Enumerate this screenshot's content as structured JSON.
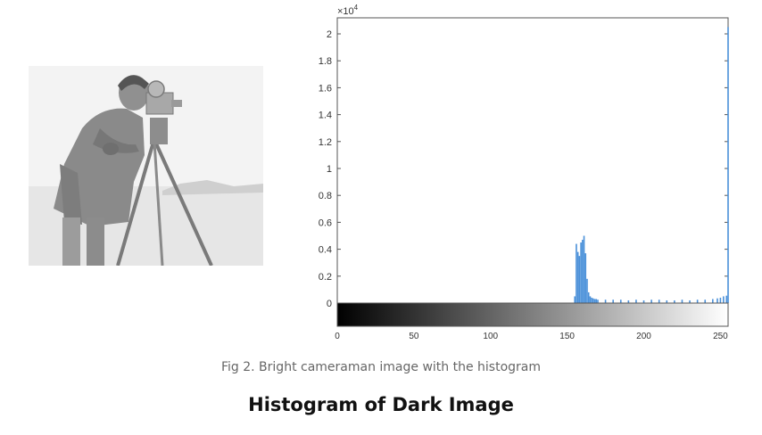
{
  "image": {
    "alt": "Bright cameraman image"
  },
  "chart_data": {
    "type": "bar",
    "xlim": [
      0,
      255
    ],
    "ylim": [
      0,
      2
    ],
    "x_ticks": [
      "0",
      "50",
      "100",
      "150",
      "200",
      "250"
    ],
    "y_ticks": [
      "0",
      "0.2",
      "0.4",
      "0.6",
      "0.8",
      "1",
      "1.2",
      "1.4",
      "1.6",
      "1.8",
      "2"
    ],
    "y_multiplier": "×10",
    "y_multiplier_exp": "4",
    "bar_color": "#4a90d9",
    "grid": false,
    "colorbar": "grayscale 0 to 255 below x axis",
    "x": [
      155,
      156,
      157,
      158,
      159,
      160,
      161,
      162,
      163,
      164,
      165,
      166,
      167,
      168,
      169,
      170,
      175,
      180,
      185,
      190,
      195,
      200,
      205,
      210,
      215,
      220,
      225,
      230,
      235,
      240,
      245,
      248,
      250,
      252,
      254,
      255
    ],
    "values": [
      0.05,
      0.44,
      0.38,
      0.35,
      0.45,
      0.47,
      0.5,
      0.37,
      0.18,
      0.08,
      0.05,
      0.04,
      0.035,
      0.03,
      0.03,
      0.025,
      0.025,
      0.025,
      0.025,
      0.02,
      0.025,
      0.02,
      0.025,
      0.025,
      0.02,
      0.02,
      0.025,
      0.02,
      0.025,
      0.025,
      0.03,
      0.035,
      0.04,
      0.05,
      0.055,
      2.05
    ]
  },
  "caption": "Fig 2. Bright cameraman image with the histogram",
  "heading": "Histogram of Dark Image"
}
